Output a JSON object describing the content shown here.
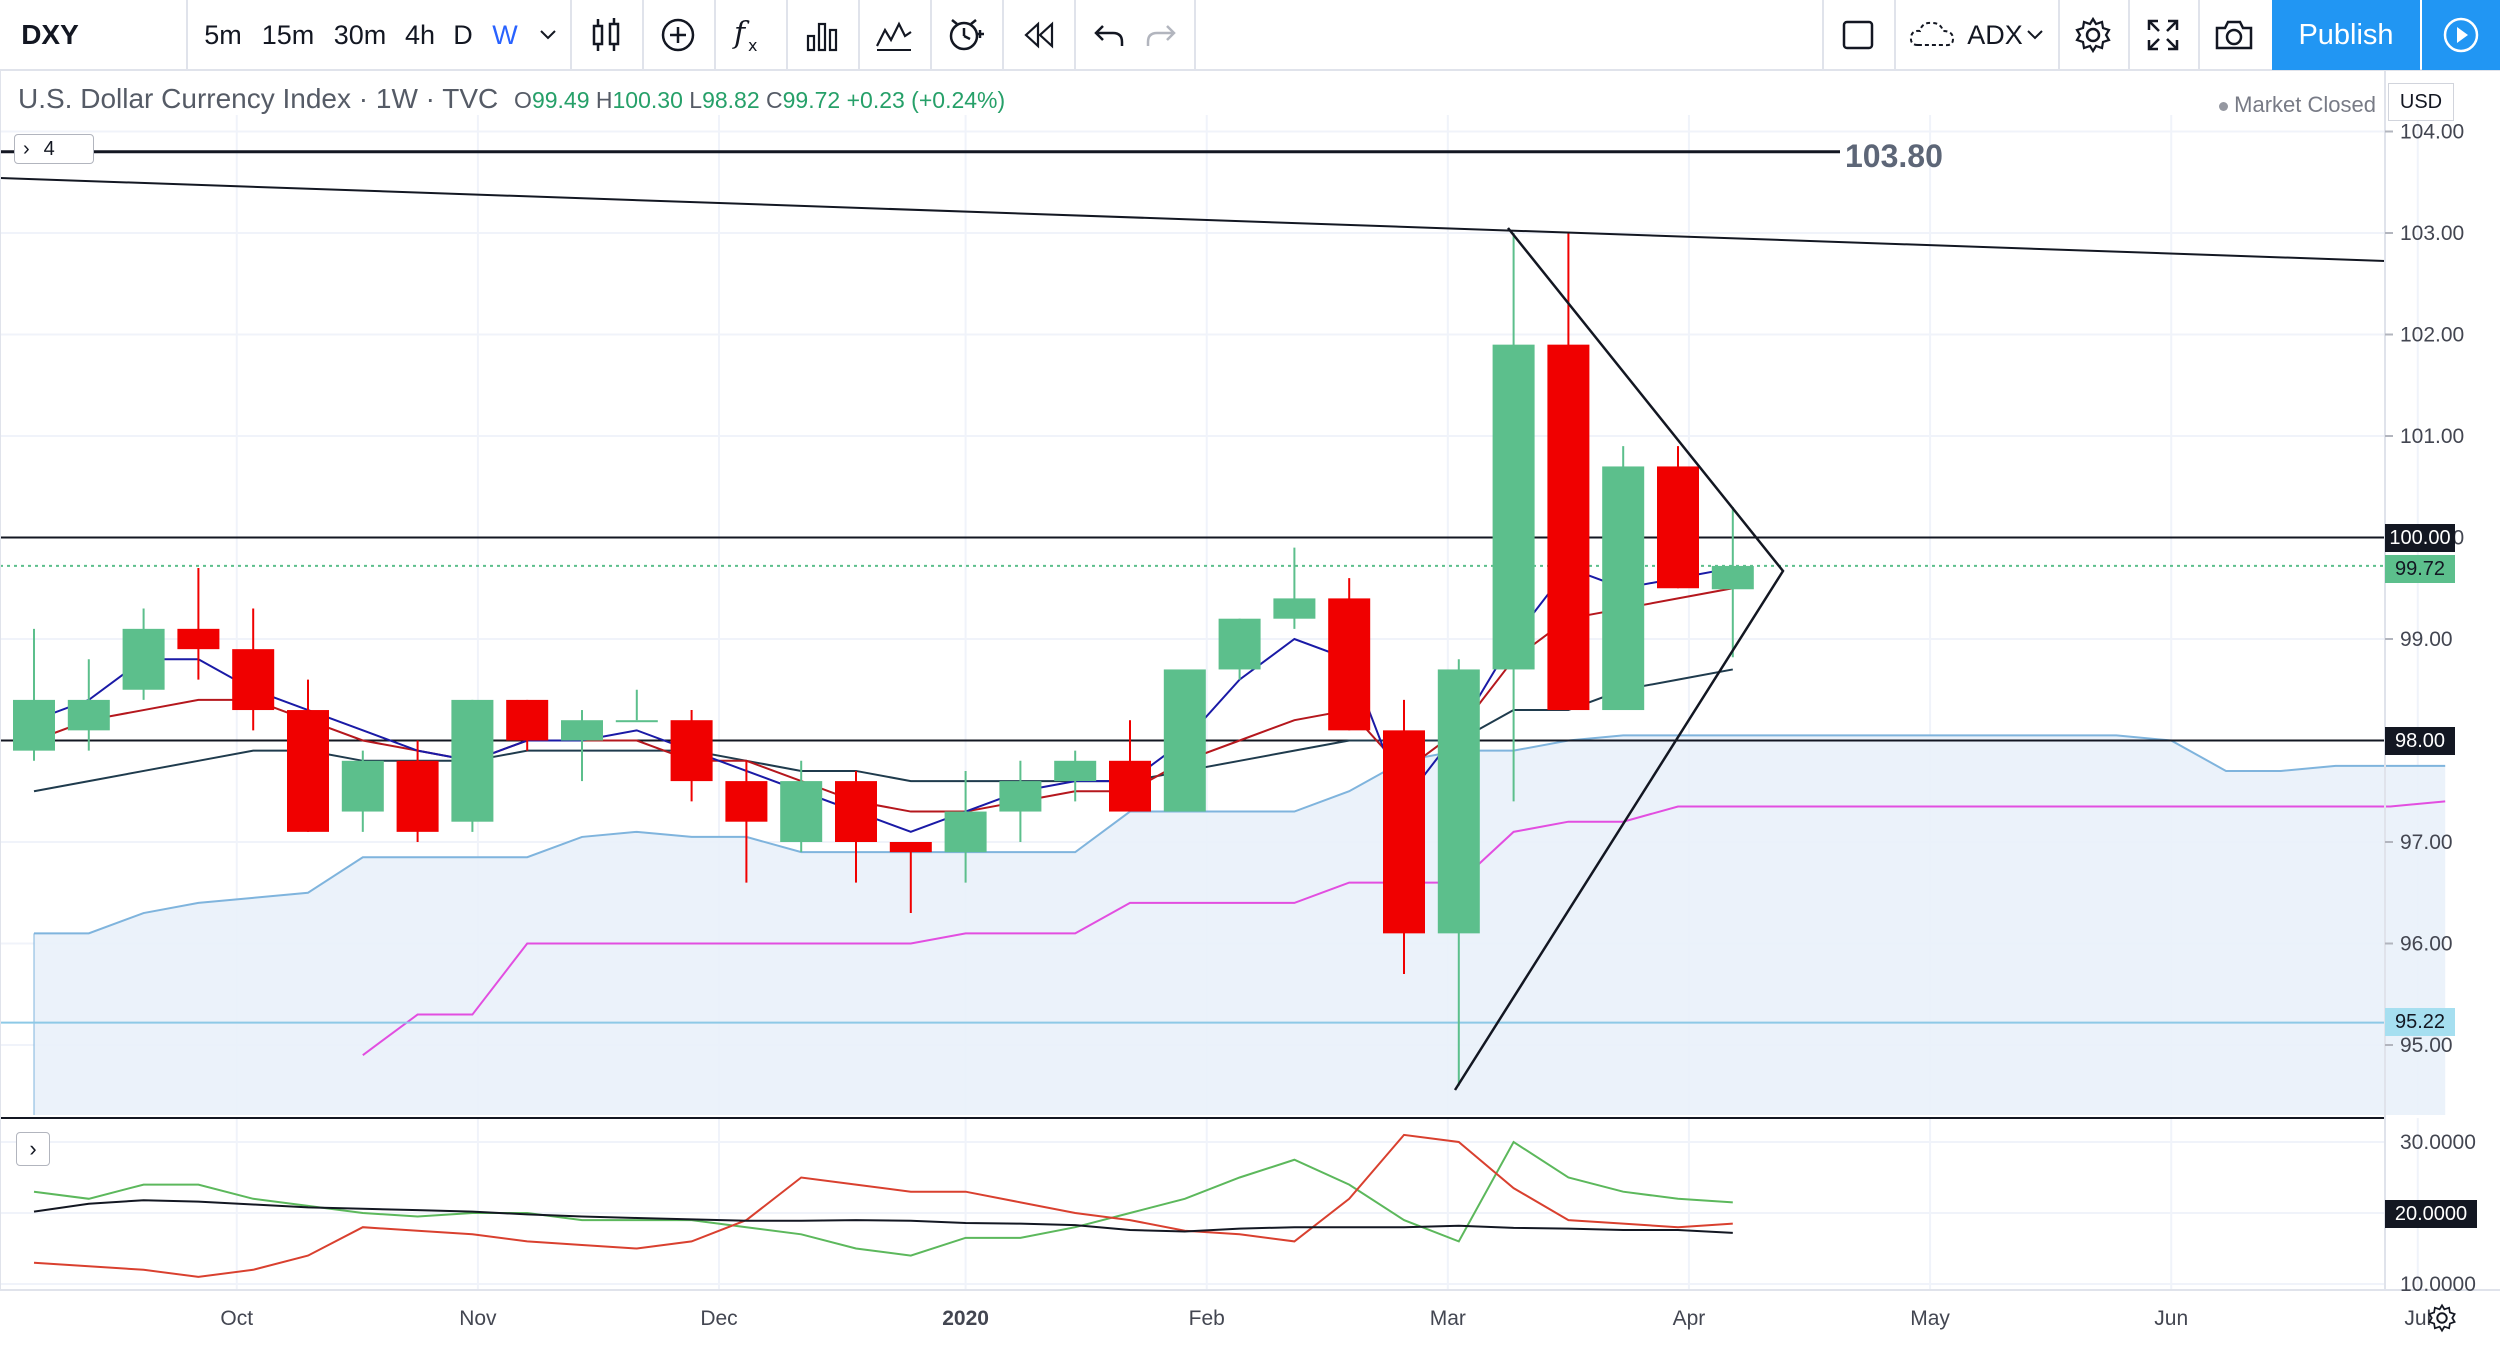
{
  "toolbar": {
    "symbol": "DXY",
    "intervals": [
      "5m",
      "15m",
      "30m",
      "4h",
      "D",
      "W"
    ],
    "active_interval": "W",
    "indicator": "ADX",
    "publish_label": "Publish"
  },
  "legend": {
    "title": "U.S. Dollar Currency Index · 1W · TVC",
    "o_key": "O",
    "o_val": "99.49",
    "h_key": "H",
    "h_val": "100.30",
    "l_key": "L",
    "l_val": "98.82",
    "c_key": "C",
    "c_val": "99.72",
    "change": "+0.23 (+0.24%)",
    "market_status": "Market Closed",
    "currency": "USD",
    "hidden_count": "4"
  },
  "colors": {
    "up": "#5cbf8c",
    "down": "#f00000",
    "accent": "#2196f3",
    "cloud": "#e9f1f9",
    "cloud_line": "#7fb4dd",
    "span_b": "#e24ee0"
  },
  "chart_data": {
    "type": "candlestick",
    "price_axis": {
      "ticks": [
        "104.00",
        "103.00",
        "102.00",
        "101.00",
        "100.00",
        "99.00",
        "98.00",
        "97.00",
        "96.00",
        "95.00"
      ],
      "ylim": [
        94.4,
        104.3
      ]
    },
    "time_axis": {
      "ticks": [
        "Oct",
        "Nov",
        "Dec",
        "2020",
        "Feb",
        "Mar",
        "Apr",
        "May",
        "Jun",
        "Jul"
      ]
    },
    "price_labels": {
      "resistance_label": "103.80",
      "level_100": "100.00",
      "last_price": "99.72",
      "level_98": "98.00",
      "level_95": "95.22"
    },
    "candles": [
      {
        "o": 97.9,
        "h": 99.1,
        "l": 97.8,
        "c": 98.4
      },
      {
        "o": 98.1,
        "h": 98.8,
        "l": 97.9,
        "c": 98.4
      },
      {
        "o": 98.5,
        "h": 99.3,
        "l": 98.4,
        "c": 99.1
      },
      {
        "o": 99.1,
        "h": 99.7,
        "l": 98.6,
        "c": 98.9
      },
      {
        "o": 98.9,
        "h": 99.3,
        "l": 98.1,
        "c": 98.3
      },
      {
        "o": 98.3,
        "h": 98.6,
        "l": 97.1,
        "c": 97.1
      },
      {
        "o": 97.3,
        "h": 97.9,
        "l": 97.1,
        "c": 97.8
      },
      {
        "o": 97.8,
        "h": 98.0,
        "l": 97.0,
        "c": 97.1
      },
      {
        "o": 97.2,
        "h": 98.4,
        "l": 97.1,
        "c": 98.4
      },
      {
        "o": 98.4,
        "h": 98.4,
        "l": 97.9,
        "c": 98.0
      },
      {
        "o": 98.0,
        "h": 98.3,
        "l": 97.6,
        "c": 98.2
      },
      {
        "o": 98.2,
        "h": 98.5,
        "l": 98.2,
        "c": 98.2
      },
      {
        "o": 98.2,
        "h": 98.3,
        "l": 97.4,
        "c": 97.6
      },
      {
        "o": 97.6,
        "h": 97.8,
        "l": 96.6,
        "c": 97.2
      },
      {
        "o": 97.0,
        "h": 97.8,
        "l": 96.9,
        "c": 97.6
      },
      {
        "o": 97.6,
        "h": 97.7,
        "l": 96.6,
        "c": 97.0
      },
      {
        "o": 97.0,
        "h": 97.0,
        "l": 96.3,
        "c": 96.9
      },
      {
        "o": 96.9,
        "h": 97.7,
        "l": 96.6,
        "c": 97.3
      },
      {
        "o": 97.3,
        "h": 97.8,
        "l": 97.0,
        "c": 97.6
      },
      {
        "o": 97.6,
        "h": 97.9,
        "l": 97.4,
        "c": 97.8
      },
      {
        "o": 97.8,
        "h": 98.2,
        "l": 97.3,
        "c": 97.3
      },
      {
        "o": 97.3,
        "h": 98.7,
        "l": 97.3,
        "c": 98.7
      },
      {
        "o": 98.7,
        "h": 99.2,
        "l": 98.6,
        "c": 99.2
      },
      {
        "o": 99.2,
        "h": 99.9,
        "l": 99.1,
        "c": 99.4
      },
      {
        "o": 99.4,
        "h": 99.6,
        "l": 98.1,
        "c": 98.1
      },
      {
        "o": 98.1,
        "h": 98.4,
        "l": 95.7,
        "c": 96.1
      },
      {
        "o": 96.1,
        "h": 98.8,
        "l": 94.6,
        "c": 98.7
      },
      {
        "o": 98.7,
        "h": 103.0,
        "l": 97.4,
        "c": 101.9
      },
      {
        "o": 101.9,
        "h": 103.0,
        "l": 98.3,
        "c": 98.3
      },
      {
        "o": 98.3,
        "h": 100.9,
        "l": 98.3,
        "c": 100.7
      },
      {
        "o": 100.7,
        "h": 100.9,
        "l": 99.5,
        "c": 99.5
      },
      {
        "o": 99.49,
        "h": 100.3,
        "l": 98.82,
        "c": 99.72
      }
    ],
    "tenkan": [
      98.2,
      98.4,
      98.8,
      98.8,
      98.5,
      98.3,
      98.1,
      97.9,
      97.8,
      98.0,
      98.0,
      98.1,
      97.9,
      97.7,
      97.5,
      97.3,
      97.1,
      97.3,
      97.5,
      97.6,
      97.6,
      98.0,
      98.6,
      99.0,
      98.8,
      97.4,
      98.1,
      99.0,
      99.7,
      99.5,
      99.6,
      99.7
    ],
    "kijun": [
      98.0,
      98.2,
      98.3,
      98.4,
      98.4,
      98.2,
      98.0,
      97.9,
      97.8,
      98.0,
      98.0,
      98.0,
      97.8,
      97.8,
      97.6,
      97.4,
      97.3,
      97.3,
      97.4,
      97.5,
      97.5,
      97.8,
      98.0,
      98.2,
      98.3,
      97.7,
      98.1,
      98.8,
      99.2,
      99.3,
      99.4,
      99.5
    ],
    "base_line": [
      97.5,
      97.6,
      97.7,
      97.8,
      97.9,
      97.9,
      97.8,
      97.8,
      97.8,
      97.9,
      97.9,
      97.9,
      97.9,
      97.8,
      97.7,
      97.7,
      97.6,
      97.6,
      97.6,
      97.6,
      97.6,
      97.7,
      97.8,
      97.9,
      98.0,
      98.0,
      98.0,
      98.3,
      98.3,
      98.5,
      98.6,
      98.7
    ],
    "cloud_upper": [
      96.1,
      96.1,
      96.3,
      96.4,
      96.45,
      96.5,
      96.85,
      96.85,
      96.85,
      96.85,
      97.05,
      97.1,
      97.05,
      97.05,
      96.9,
      96.9,
      96.9,
      96.9,
      96.9,
      96.9,
      97.3,
      97.3,
      97.3,
      97.3,
      97.5,
      97.8,
      97.9,
      97.9,
      98.0,
      98.05,
      98.05,
      98.05,
      98.05,
      98.05,
      98.05,
      98.05,
      98.05,
      98.05,
      98.05,
      98.0,
      97.7,
      97.7,
      97.75,
      97.75,
      97.75
    ],
    "span_b": [
      null,
      null,
      null,
      null,
      null,
      null,
      94.9,
      95.3,
      95.3,
      96.0,
      96.0,
      96.0,
      96.0,
      96.0,
      96.0,
      96.0,
      96.0,
      96.1,
      96.1,
      96.1,
      96.4,
      96.4,
      96.4,
      96.4,
      96.6,
      96.6,
      96.6,
      97.1,
      97.2,
      97.2,
      97.35,
      97.35,
      97.35,
      97.35,
      97.35,
      97.35,
      97.35,
      97.35,
      97.35,
      97.35,
      97.35,
      97.35,
      97.35,
      97.35,
      97.4
    ],
    "adx_panel": {
      "ticks": [
        "30.0000",
        "20.0000",
        "10.0000"
      ],
      "ylim": [
        9,
        33
      ],
      "adx": [
        20.2,
        21.3,
        21.8,
        21.6,
        21.2,
        20.8,
        20.6,
        20.4,
        20.2,
        19.8,
        19.5,
        19.3,
        19.1,
        18.9,
        18.9,
        19.0,
        18.9,
        18.6,
        18.5,
        18.3,
        17.6,
        17.4,
        17.8,
        18.0,
        18.0,
        18.0,
        18.2,
        17.9,
        17.8,
        17.6,
        17.6,
        17.2
      ],
      "plus_di": [
        23.0,
        22.0,
        24.0,
        24.0,
        22.0,
        21.0,
        20.0,
        19.5,
        20.0,
        20.0,
        19.0,
        19.0,
        19.0,
        18.0,
        17.0,
        15.0,
        14.0,
        16.5,
        16.5,
        18.0,
        20.0,
        22.0,
        25.0,
        27.5,
        24.0,
        19.0,
        16.0,
        30.0,
        25.0,
        23.0,
        22.0,
        21.5
      ],
      "minus_di": [
        13.0,
        12.5,
        12.0,
        11.0,
        12.0,
        14.0,
        18.0,
        17.5,
        17.0,
        16.0,
        15.5,
        15.0,
        16.0,
        19.0,
        25.0,
        24.0,
        23.0,
        23.0,
        21.5,
        20.0,
        19.0,
        17.5,
        17.0,
        16.0,
        22.0,
        31.0,
        30.0,
        23.5,
        19.0,
        18.5,
        18.0,
        18.5
      ]
    }
  }
}
